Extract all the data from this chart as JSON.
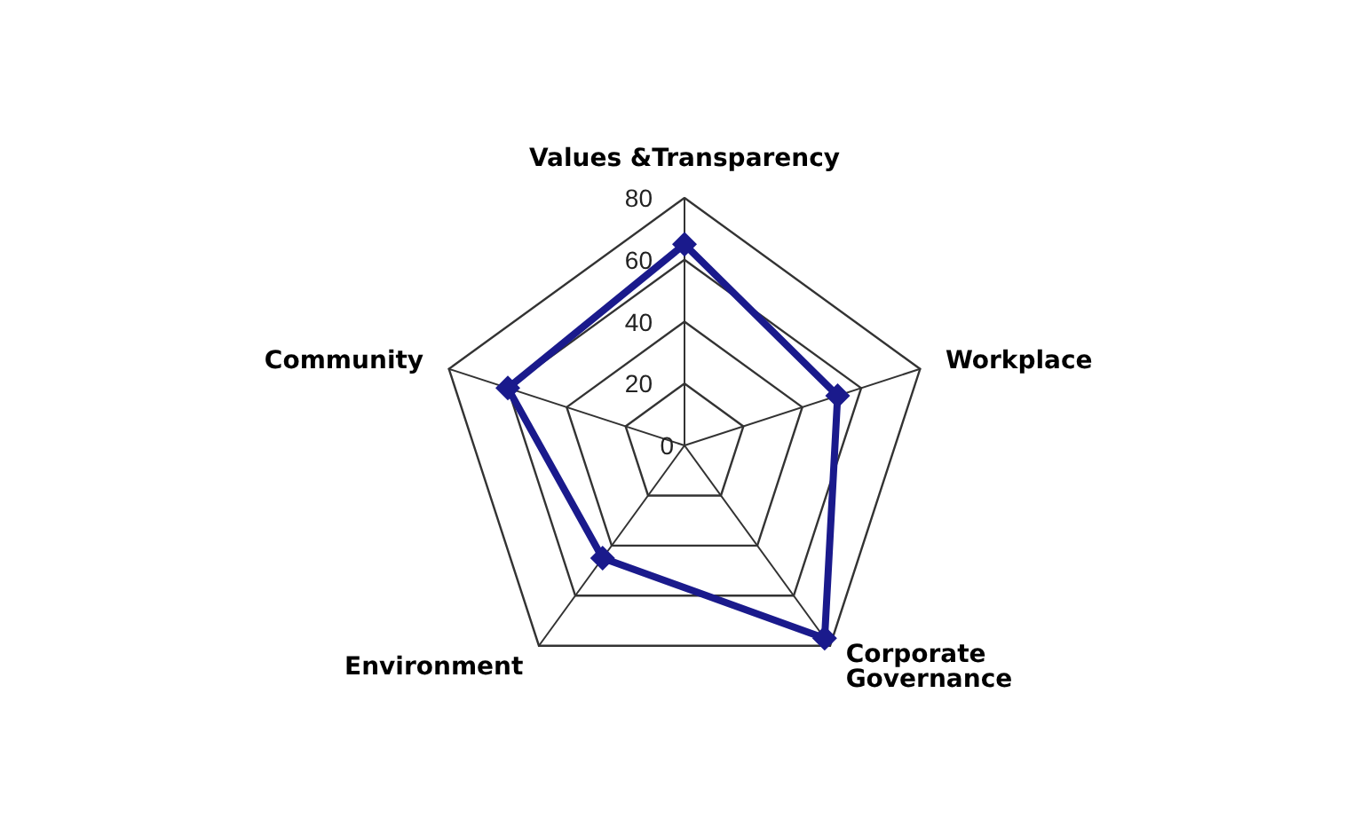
{
  "chart_data": {
    "type": "radar",
    "categories": [
      "Values &Transparency",
      "Workplace",
      "Corporate\nGovernance",
      "Environment",
      "Community"
    ],
    "series": [
      {
        "color": "#1a1a8c",
        "values": [
          65,
          52,
          77,
          45,
          60
        ]
      }
    ],
    "ylim": [
      0,
      80
    ],
    "yticks": [
      0,
      20,
      40,
      60,
      80
    ],
    "marker": "diamond",
    "line_style": "solid"
  }
}
